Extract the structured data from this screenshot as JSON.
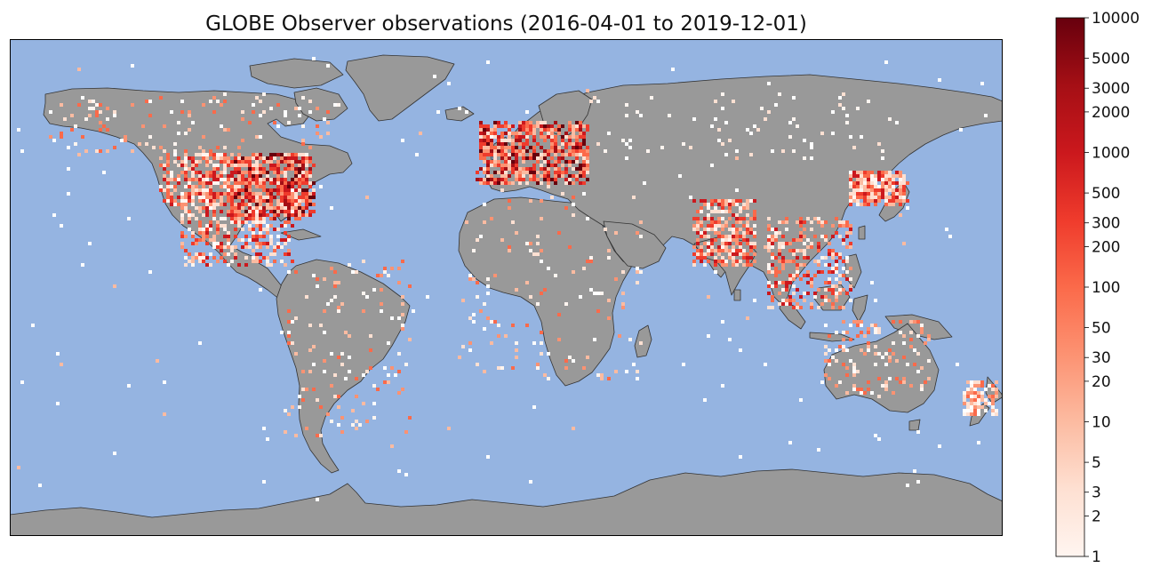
{
  "map": {
    "title": "GLOBE Observer observations (2016-04-01 to 2019-12-01)",
    "projection": "Plate Carree (equirectangular), lon -180..180, lat -90..90",
    "colors": {
      "ocean": "#95b4e1",
      "land": "#999999",
      "coastline": "#333333",
      "frame": "#000000"
    },
    "colormap": "Reds",
    "color_scale": "log",
    "density_regions": [
      {
        "region": "United States (east)",
        "lon": [
          -100,
          -70
        ],
        "lat": [
          25,
          48
        ],
        "level": "high"
      },
      {
        "region": "United States (west)",
        "lon": [
          -125,
          -100
        ],
        "lat": [
          30,
          49
        ],
        "level": "medium"
      },
      {
        "region": "Canada / Alaska",
        "lon": [
          -165,
          -60
        ],
        "lat": [
          48,
          70
        ],
        "level": "low"
      },
      {
        "region": "Mexico / Central America",
        "lon": [
          -118,
          -78
        ],
        "lat": [
          8,
          30
        ],
        "level": "medium"
      },
      {
        "region": "South America",
        "lon": [
          -80,
          -35
        ],
        "lat": [
          -55,
          10
        ],
        "level": "low"
      },
      {
        "region": "Europe",
        "lon": [
          -10,
          30
        ],
        "lat": [
          37,
          60
        ],
        "level": "high"
      },
      {
        "region": "Africa",
        "lon": [
          -17,
          50
        ],
        "lat": [
          -35,
          35
        ],
        "level": "low"
      },
      {
        "region": "India",
        "lon": [
          68,
          90
        ],
        "lat": [
          8,
          32
        ],
        "level": "medium"
      },
      {
        "region": "Southeast Asia",
        "lon": [
          95,
          125
        ],
        "lat": [
          -8,
          25
        ],
        "level": "medium"
      },
      {
        "region": "Japan / Korea",
        "lon": [
          125,
          145
        ],
        "lat": [
          30,
          42
        ],
        "level": "medium"
      },
      {
        "region": "Australia",
        "lon": [
          115,
          154
        ],
        "lat": [
          -39,
          -12
        ],
        "level": "low"
      },
      {
        "region": "New Zealand",
        "lon": [
          166,
          178
        ],
        "lat": [
          -46,
          -34
        ],
        "level": "low"
      },
      {
        "region": "Russia / Siberia",
        "lon": [
          30,
          140
        ],
        "lat": [
          45,
          70
        ],
        "level": "sparse"
      }
    ]
  },
  "colorbar": {
    "scale": "log",
    "min": 1,
    "max": 10000,
    "ticks": [
      {
        "value": 1,
        "label": "1"
      },
      {
        "value": 2,
        "label": "2"
      },
      {
        "value": 3,
        "label": "3"
      },
      {
        "value": 5,
        "label": "5"
      },
      {
        "value": 10,
        "label": "10"
      },
      {
        "value": 20,
        "label": "20"
      },
      {
        "value": 30,
        "label": "30"
      },
      {
        "value": 50,
        "label": "50"
      },
      {
        "value": 100,
        "label": "100"
      },
      {
        "value": 200,
        "label": "200"
      },
      {
        "value": 300,
        "label": "300"
      },
      {
        "value": 500,
        "label": "500"
      },
      {
        "value": 1000,
        "label": "1000"
      },
      {
        "value": 2000,
        "label": "2000"
      },
      {
        "value": 3000,
        "label": "3000"
      },
      {
        "value": 5000,
        "label": "5000"
      },
      {
        "value": 10000,
        "label": "10000"
      }
    ],
    "gradient": [
      "#fff5f0",
      "#fee0d2",
      "#fcbba1",
      "#fc9272",
      "#fb6a4a",
      "#ef3b2c",
      "#cb181d",
      "#a50f15",
      "#67000d"
    ]
  }
}
